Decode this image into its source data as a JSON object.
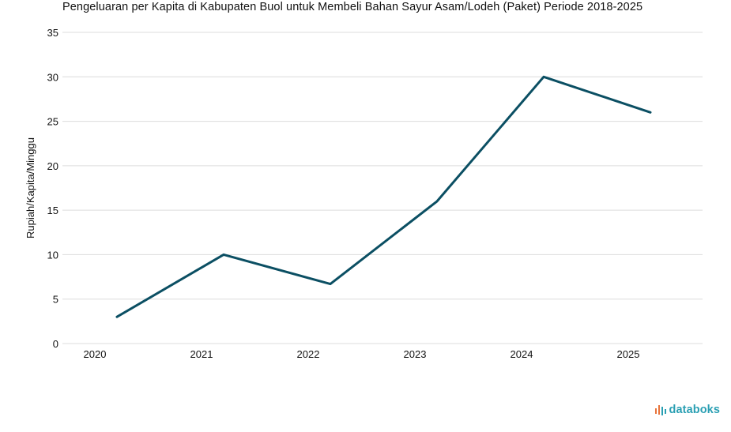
{
  "chart_data": {
    "type": "line",
    "title": "Pengeluaran per Kapita di Kabupaten Buol untuk Membeli Bahan Sayur Asam/Lodeh (Paket) Periode 2018-2025",
    "xlabel": "",
    "ylabel": "Rupiah/Kapita/Minggu",
    "x": [
      "2020",
      "2021",
      "2022",
      "2023",
      "2024",
      "2025"
    ],
    "series": [
      {
        "values": [
          3,
          10,
          6.7,
          16,
          30,
          26
        ]
      }
    ],
    "ylim": [
      0,
      35
    ],
    "yticks": [
      0,
      5,
      10,
      15,
      20,
      25,
      30,
      35
    ],
    "grid": true,
    "line_color": "#0b4f63"
  },
  "brand": {
    "text": "databoks",
    "color": "#2a9fb3",
    "icon": "databoks-bars-icon"
  }
}
